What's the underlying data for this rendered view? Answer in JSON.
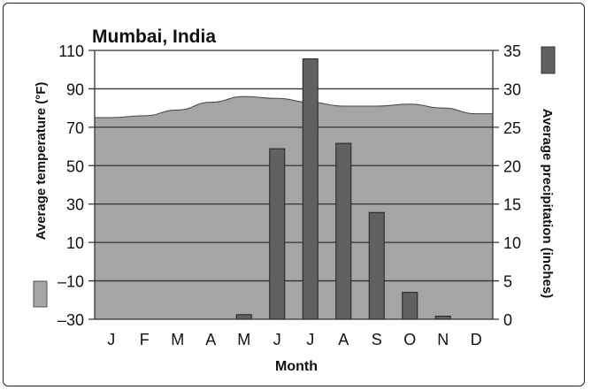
{
  "chart_data": {
    "type": "bar+area",
    "title": "Mumbai, India",
    "xlabel": "Month",
    "ylabel_left": "Average temperature (°F)",
    "ylabel_right": "Average precipitation (inches)",
    "categories": [
      "J",
      "F",
      "M",
      "A",
      "M",
      "J",
      "J",
      "A",
      "S",
      "O",
      "N",
      "D"
    ],
    "left_ticks": [
      "110",
      "90",
      "70",
      "50",
      "30",
      "10",
      "–10",
      "–30"
    ],
    "right_ticks": [
      "35",
      "30",
      "25",
      "20",
      "15",
      "10",
      "5",
      "0"
    ],
    "ylim_left": [
      -30,
      110
    ],
    "ylim_right": [
      0,
      35
    ],
    "grid": true,
    "series": [
      {
        "name": "Average temperature (°F)",
        "type": "area",
        "axis": "left",
        "color": "#a3a6a5",
        "values": [
          75,
          76,
          79,
          83,
          86,
          85,
          83,
          81,
          81,
          82,
          80,
          77
        ]
      },
      {
        "name": "Average precipitation (inches)",
        "type": "bar",
        "axis": "right",
        "color": "#606261",
        "values": [
          0,
          0,
          0,
          0,
          0.6,
          22.2,
          33.9,
          22.9,
          13.9,
          3.5,
          0.4,
          0
        ]
      }
    ]
  }
}
